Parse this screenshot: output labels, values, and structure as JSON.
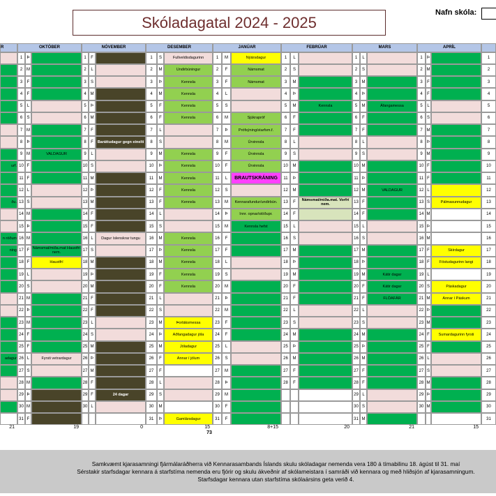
{
  "header": {
    "title": "Skóladagatal 2024 - 2025",
    "school_label": "Nafn skóla:"
  },
  "palette": {
    "g": "#00b050",
    "p": "#f2dcdb",
    "d": "#494429",
    "l": "#92d050",
    "y": "#ffff00",
    "w": "#ffffff",
    "m": "#ff40ff",
    "c": "#d8e4bc"
  },
  "months": [
    {
      "name": "R",
      "fills": "pgggggppgggggppgggggppgggggppg",
      "events": {
        "10": "urf.",
        "13": "ðu.",
        "16": "n röðum",
        "17": "ning",
        "26": "adagur"
      },
      "total": 21
    },
    {
      "name": "OKTÓBER",
      "days": [
        1,
        2,
        3,
        4,
        5,
        6,
        7,
        8,
        9,
        10,
        11,
        12,
        13,
        14,
        15,
        16,
        17,
        18,
        19,
        20,
        21,
        22,
        23,
        24,
        25,
        26,
        27,
        28,
        29,
        30,
        31
      ],
      "weekdays": [
        "Þ",
        "M",
        "F",
        "F",
        "L",
        "S",
        "M",
        "Þ",
        "M",
        "F",
        "F",
        "L",
        "S",
        "M",
        "Þ",
        "M",
        "F",
        "F",
        "L",
        "S",
        "M",
        "Þ",
        "M",
        "F",
        "F",
        "L",
        "S",
        "M",
        "Þ",
        "M",
        "F"
      ],
      "fills": "ggggppgggggppggggyppgggggppgddd",
      "events": {
        "9": "VALDAGUR",
        "17": "Námsmat/miða.mat Haustfrí nem.",
        "18": "Haustfrí",
        "26": "Fyrsti vetrardagur"
      },
      "total": 19
    },
    {
      "name": "NÓVEMBER",
      "days": [
        1,
        2,
        3,
        4,
        5,
        6,
        7,
        8,
        9,
        10,
        11,
        12,
        13,
        14,
        15,
        16,
        17,
        18,
        19,
        20,
        21,
        22,
        23,
        24,
        25,
        26,
        27,
        28,
        29,
        30
      ],
      "weekdays": [
        "F",
        "L",
        "S",
        "M",
        "Þ",
        "M",
        "F",
        "F",
        "L",
        "S",
        "M",
        "Þ",
        "M",
        "F",
        "F",
        "L",
        "S",
        "M",
        "Þ",
        "M",
        "F",
        "F",
        "L",
        "S",
        "M",
        "Þ",
        "M",
        "F",
        "F",
        "L"
      ],
      "fills": "dppdddddppdddddppdddddppdddddp",
      "events": {
        "8": "Baráttudagur gegn einelti",
        "16": "Dagur íslenskrar tungu",
        "29": "24 dagar"
      },
      "total": 0
    },
    {
      "name": "DESEMBER",
      "days": [
        1,
        2,
        3,
        4,
        5,
        6,
        7,
        8,
        9,
        10,
        11,
        12,
        13,
        14,
        15,
        16,
        17,
        18,
        19,
        20,
        21,
        22,
        23,
        24,
        25,
        26,
        27,
        28,
        29,
        30,
        31
      ],
      "weekdays": [
        "S",
        "M",
        "Þ",
        "M",
        "F",
        "F",
        "L",
        "S",
        "M",
        "Þ",
        "M",
        "F",
        "F",
        "L",
        "S",
        "M",
        "Þ",
        "M",
        "F",
        "F",
        "L",
        "S",
        "M",
        "Þ",
        "M",
        "F",
        "F",
        "L",
        "S",
        "M",
        "Þ"
      ],
      "fills": "plllllpplllllpplllllppyyyywppwy",
      "events": {
        "1": "Fullveldisdagurinn",
        "2": "Undirbúningur",
        "3": "Kennsla",
        "4": "Kennsla",
        "5": "Kennsla",
        "6": "Kennsla",
        "9": "Kennsla",
        "10": "Kennsla",
        "11": "Kennsla",
        "12": "Kennsla",
        "13": "Kennsla",
        "16": "Kennsla",
        "17": "Kennsla",
        "18": "Kennsla",
        "19": "Kennsla",
        "20": "Kennsla",
        "23": "Þorláksmessa",
        "24": "Aðfangadagur jóla",
        "25": "Jóladagur",
        "26": "Annar í jólum",
        "31": "Gamlársdagur"
      },
      "total": 15
    },
    {
      "name": "JANÚAR",
      "days": [
        1,
        2,
        3,
        4,
        5,
        6,
        7,
        8,
        9,
        10,
        11,
        12,
        13,
        14,
        15,
        16,
        17,
        18,
        19,
        20,
        21,
        22,
        23,
        24,
        25,
        26,
        27,
        28,
        29,
        30,
        31
      ],
      "weekdays": [
        "M",
        "F",
        "F",
        "L",
        "S",
        "M",
        "Þ",
        "M",
        "F",
        "F",
        "L",
        "S",
        "M",
        "Þ",
        "M",
        "F",
        "F",
        "L",
        "S",
        "M",
        "Þ",
        "M",
        "F",
        "F",
        "L",
        "S",
        "M",
        "Þ",
        "M",
        "F",
        "F"
      ],
      "fills": "yllpplllllmpllgggppgggggppggggg",
      "events": {
        "1": "Nýársdagur",
        "2": "Námsmat",
        "3": "Námsmat",
        "6": "Sjúkrapróf",
        "7": "Prófsýning/starfsm.f.",
        "8": "Úrvinnsla",
        "9": "Úrvinnsla",
        "10": "Úrvinnsla",
        "11": "BRAUTSKRÁNING",
        "13": "Kennarafundur/undirbún.",
        "14": "Innr. opnar/stöðupr.",
        "15": "Kennsla hefst"
      },
      "total": "8+15"
    },
    {
      "name": "FEBRÚAR",
      "days": [
        1,
        2,
        3,
        4,
        5,
        6,
        7,
        8,
        9,
        10,
        11,
        12,
        13,
        14,
        15,
        16,
        17,
        18,
        19,
        20,
        21,
        22,
        23,
        24,
        25,
        26,
        27,
        28
      ],
      "weekdays": [
        "L",
        "S",
        "M",
        "Þ",
        "M",
        "F",
        "F",
        "L",
        "S",
        "M",
        "Þ",
        "M",
        "F",
        "F",
        "L",
        "S",
        "M",
        "Þ",
        "M",
        "F",
        "F",
        "L",
        "S",
        "M",
        "Þ",
        "M",
        "F",
        "F"
      ],
      "fills": "ppgggggppgggccppgggggppggggg",
      "events": {
        "5": "Kennsla",
        "13": "Námsmat/miða.mat. Vorfrí nem."
      },
      "total": 20
    },
    {
      "name": "MARS",
      "days": [
        1,
        2,
        3,
        4,
        5,
        6,
        7,
        8,
        9,
        10,
        11,
        12,
        13,
        14,
        15,
        16,
        17,
        18,
        19,
        20,
        21,
        22,
        23,
        24,
        25,
        26,
        27,
        28,
        29,
        30,
        31
      ],
      "weekdays": [
        "L",
        "S",
        "M",
        "Þ",
        "M",
        "F",
        "F",
        "L",
        "S",
        "M",
        "Þ",
        "M",
        "F",
        "F",
        "L",
        "S",
        "M",
        "Þ",
        "M",
        "F",
        "F",
        "L",
        "S",
        "M",
        "Þ",
        "M",
        "F",
        "F",
        "L",
        "S",
        "M"
      ],
      "fills": "ppgggggppgggggppgggggppgggggppg",
      "events": {
        "5": "Áfangamessa",
        "12": "VALDAGUR",
        "19": "Kátir dagar",
        "20": "Kátir dagar",
        "21": "FLÓAFÁR"
      },
      "total": 21
    },
    {
      "name": "APRÍL",
      "days": [
        1,
        2,
        3,
        4,
        5,
        6,
        7,
        8,
        9,
        10,
        11,
        12,
        13,
        14,
        15,
        16,
        17,
        18,
        19,
        20,
        21,
        22,
        23,
        24,
        25,
        26,
        27,
        28,
        29,
        30
      ],
      "weekdays": [
        "Þ",
        "M",
        "F",
        "F",
        "L",
        "S",
        "M",
        "Þ",
        "M",
        "F",
        "F",
        "L",
        "S",
        "M",
        "Þ",
        "M",
        "F",
        "F",
        "L",
        "S",
        "M",
        "Þ",
        "M",
        "F",
        "F",
        "L",
        "S",
        "M",
        "Þ",
        "M"
      ],
      "fills": "ggggppgggggyywwwyywyyggygppggg",
      "events": {
        "13": "Pálmasunnudagur",
        "17": "Skírdagur",
        "18": "Föstudagurinn langi",
        "20": "Páskadagur",
        "21": "Annar í Páskum",
        "24": "Sumardagurinn fyrsti"
      },
      "total": 15
    },
    {
      "days": [
        1,
        2,
        3,
        4,
        5,
        6,
        7,
        8,
        9,
        10,
        11,
        12,
        13,
        14,
        15,
        16,
        17,
        18,
        19,
        20,
        21,
        22,
        23,
        24,
        25,
        26,
        27,
        28,
        29,
        30,
        31
      ]
    }
  ],
  "grand_total": 73,
  "footer": [
    "Samkvæmt kjarasamningi fjármálaráðherra við Kennarasambands Íslands skulu skóladagar nemenda vera 180 á tímabilinu 18. ágúst  til 31. maí",
    "Sérstakir starfsdagar kennara á starfstíma nemenda eru fjórir og skulu ákveðnir af skólameistara í samráði við kennara og með hliðsjón af kjarasamningum.",
    "Starfsdagar kennara utan starfstíma skólaársins geta verið 4."
  ]
}
